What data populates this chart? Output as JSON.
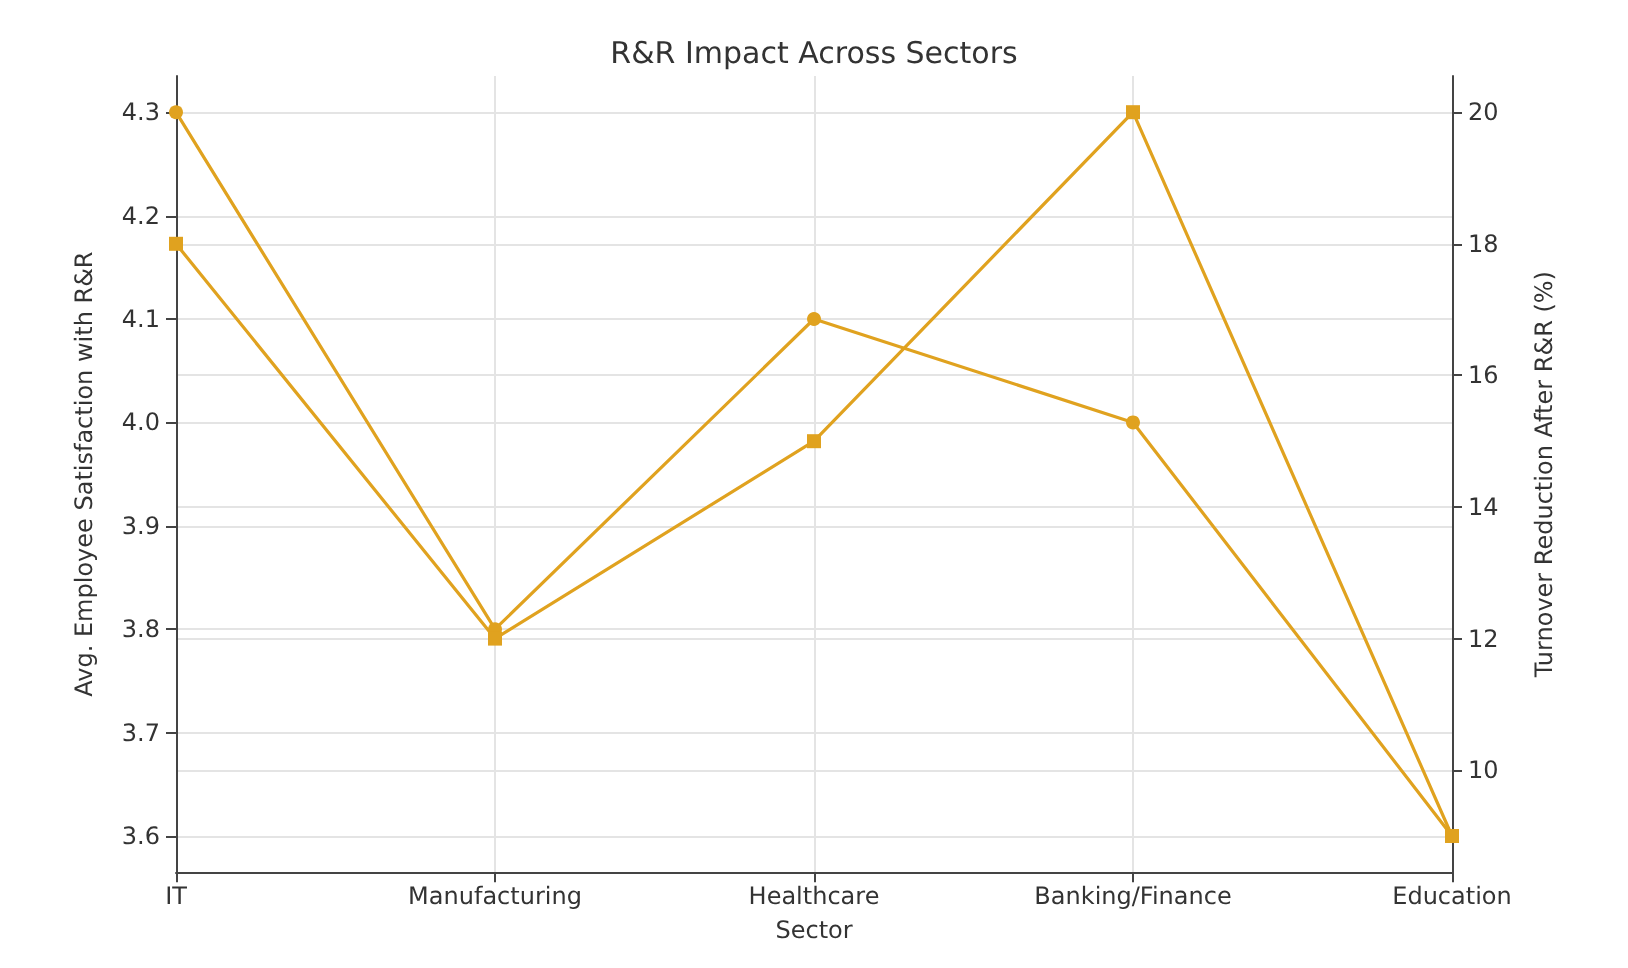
{
  "chart_data": {
    "type": "line",
    "title": "R&R Impact Across Sectors",
    "xlabel": "Sector",
    "ylabel": "Avg. Employee Satisfaction with R&R",
    "y2label": "Turnover Reduction After R&R (%)",
    "categories": [
      "IT",
      "Manufacturing",
      "Healthcare",
      "Banking/Finance",
      "Education"
    ],
    "series": [
      {
        "color": "#e0a21f",
        "marker": "circle",
        "values": [
          4.3,
          3.8,
          4.1,
          4.0,
          3.6
        ]
      },
      {
        "color": "#e0a21f",
        "marker": "square",
        "axis": "y2",
        "values": [
          18,
          12,
          15,
          20,
          9
        ]
      }
    ],
    "ylim": [
      3.565,
      4.335
    ],
    "yticks": [
      {
        "value": 3.6,
        "label": "3.6"
      },
      {
        "value": 3.7,
        "label": "3.7"
      },
      {
        "value": 3.8,
        "label": "3.8"
      },
      {
        "value": 3.9,
        "label": "3.9"
      },
      {
        "value": 4.0,
        "label": "4.0"
      },
      {
        "value": 4.1,
        "label": "4.1"
      },
      {
        "value": 4.2,
        "label": "4.2"
      },
      {
        "value": 4.3,
        "label": "4.3"
      }
    ],
    "y2lim": [
      8.45,
      20.55
    ],
    "y2ticks": [
      10,
      12,
      14,
      16,
      18,
      20
    ],
    "grid": true,
    "line_style": "solid"
  }
}
